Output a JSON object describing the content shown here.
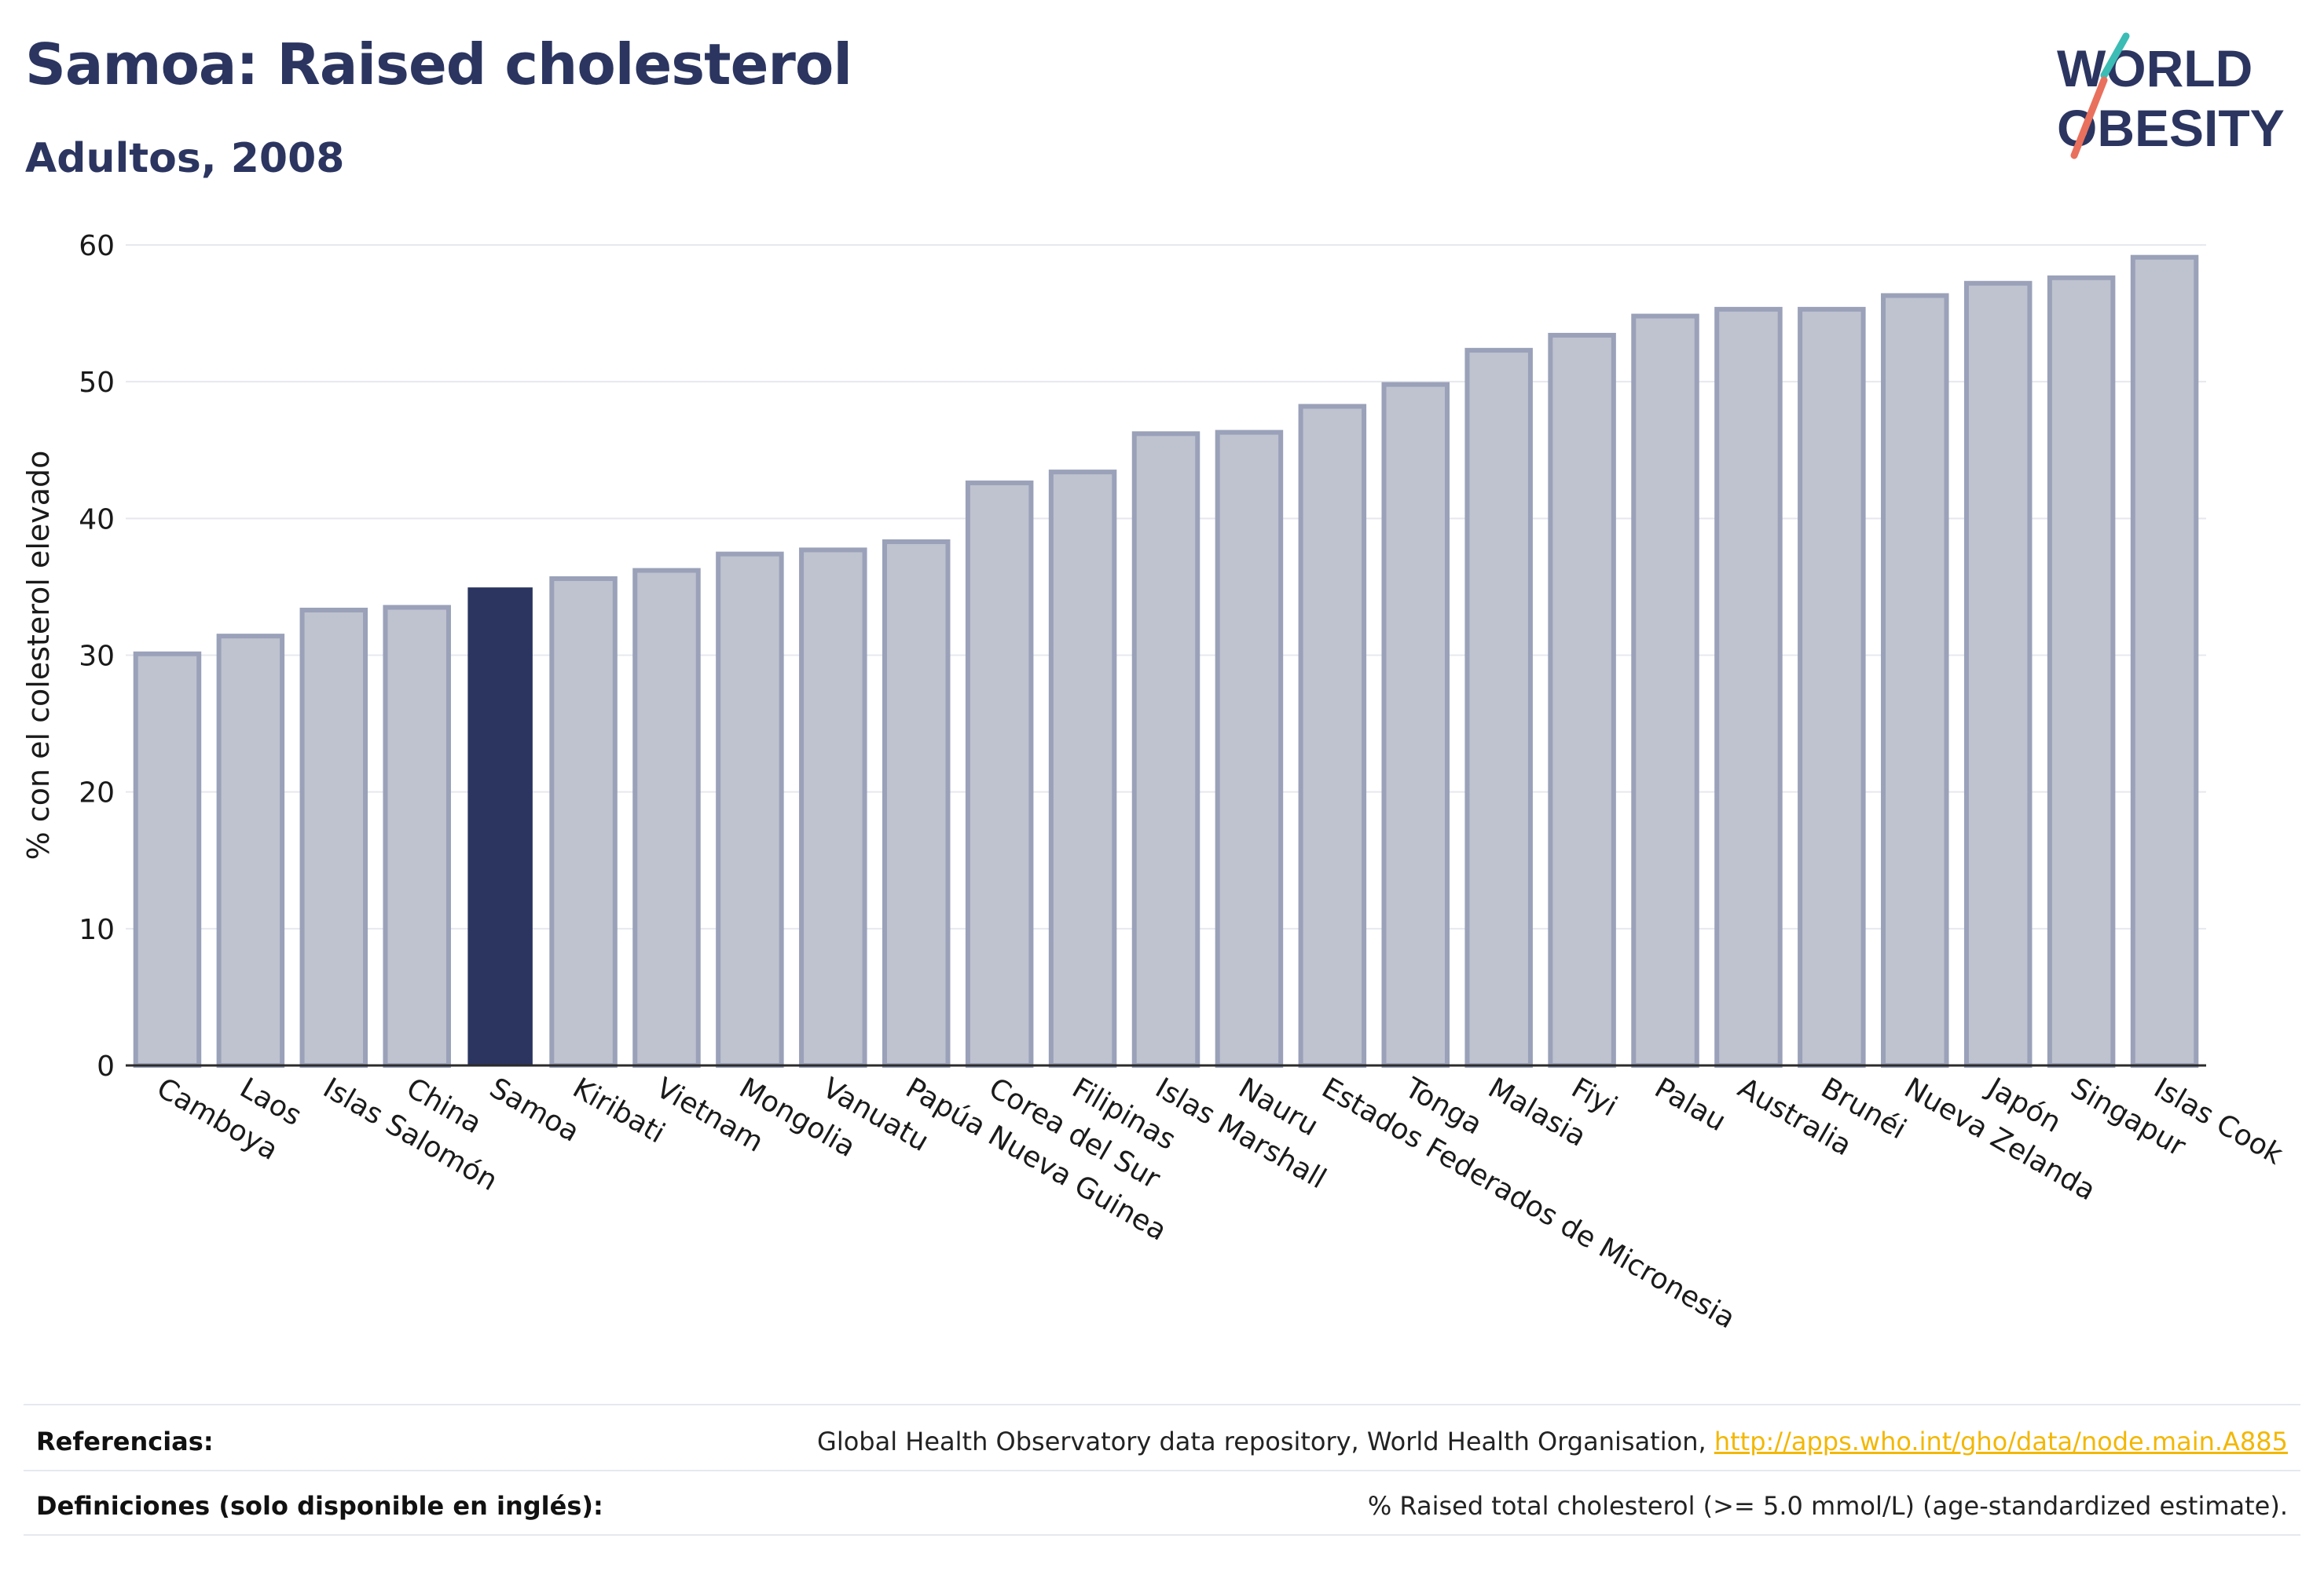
{
  "header": {
    "title": "Samoa: Raised cholesterol",
    "subtitle": "Adultos, 2008"
  },
  "logo": {
    "line1": "WORLD",
    "line2": "OBESITY"
  },
  "footer": {
    "references_label": "Referencias:",
    "references_text": "Global Health Observatory data repository, World Health Organisation, ",
    "references_link": "http://apps.who.int/gho/data/node.main.A885",
    "definitions_label": "Definiciones (solo disponible en inglés):",
    "definitions_text": "% Raised total cholesterol (>= 5.0 mmol/L) (age-standardized estimate)."
  },
  "colors": {
    "bar": "#bfc3cf",
    "bar_border": "#9aa1b9",
    "highlight": "#2b3560",
    "grid": "#e6e8ee",
    "text": "#1a1a1a"
  },
  "chart_data": {
    "type": "bar",
    "xlabel": "",
    "ylabel": "% con el colesterol elevado",
    "ylim": [
      0,
      60
    ],
    "yticks": [
      0,
      10,
      20,
      30,
      40,
      50,
      60
    ],
    "grid": true,
    "highlight": "Samoa",
    "categories": [
      "Camboya",
      "Laos",
      "Islas Salomón",
      "China",
      "Samoa",
      "Kiribati",
      "Vietnam",
      "Mongolia",
      "Vanuatu",
      "Papúa Nueva Guinea",
      "Corea del Sur",
      "Filipinas",
      "Islas Marshall",
      "Nauru",
      "Estados Federados de Micronesia",
      "Tonga",
      "Malasia",
      "Fiyi",
      "Palau",
      "Australia",
      "Brunéi",
      "Nueva Zelanda",
      "Japón",
      "Singapur",
      "Islas Cook"
    ],
    "values": [
      30.1,
      31.4,
      33.3,
      33.5,
      34.9,
      35.6,
      36.2,
      37.4,
      37.7,
      38.3,
      42.6,
      43.4,
      46.2,
      46.3,
      48.2,
      49.8,
      52.3,
      53.4,
      54.8,
      55.3,
      55.3,
      56.3,
      57.2,
      57.6,
      59.1
    ]
  }
}
